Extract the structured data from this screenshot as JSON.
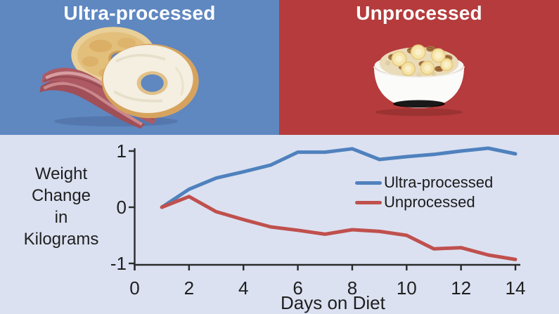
{
  "top_panels": [
    {
      "label": "Ultra-processed",
      "bg_color": "#5f87c0",
      "text_color": "#ffffff",
      "image": "bagel-with-cream-cheese-and-bacon-image"
    },
    {
      "label": "Unprocessed",
      "bg_color": "#b53b3c",
      "text_color": "#ffffff",
      "image": "oatmeal-bowl-with-banana-and-walnuts-image"
    }
  ],
  "chart_data": {
    "type": "line",
    "x": [
      1,
      2,
      3,
      4,
      5,
      6,
      7,
      8,
      9,
      10,
      11,
      12,
      13,
      14
    ],
    "series": [
      {
        "name": "Ultra-processed",
        "color": "#4f81bd",
        "values": [
          0,
          0.32,
          0.52,
          0.63,
          0.75,
          0.98,
          0.98,
          1.04,
          0.85,
          0.9,
          0.94,
          1.0,
          1.05,
          0.95
        ]
      },
      {
        "name": "Unprocessed",
        "color": "#c0504d",
        "values": [
          0,
          0.19,
          -0.08,
          -0.22,
          -0.35,
          -0.41,
          -0.48,
          -0.4,
          -0.43,
          -0.5,
          -0.74,
          -0.72,
          -0.85,
          -0.93
        ]
      }
    ],
    "ylabel": "Weight\nChange\nin\nKilograms",
    "xlabel": "Days on Diet",
    "xticks": [
      0,
      2,
      4,
      6,
      8,
      10,
      12,
      14
    ],
    "yticks": [
      1,
      0,
      -1
    ],
    "xlim": [
      0,
      14
    ],
    "ylim": [
      -1,
      1
    ],
    "grid": false,
    "legend_position": "center-right",
    "plot_bg": "#dbe1f1",
    "axis_color": "#2b2b2b",
    "text_color": "#1f1f1f",
    "line_width": 5
  }
}
